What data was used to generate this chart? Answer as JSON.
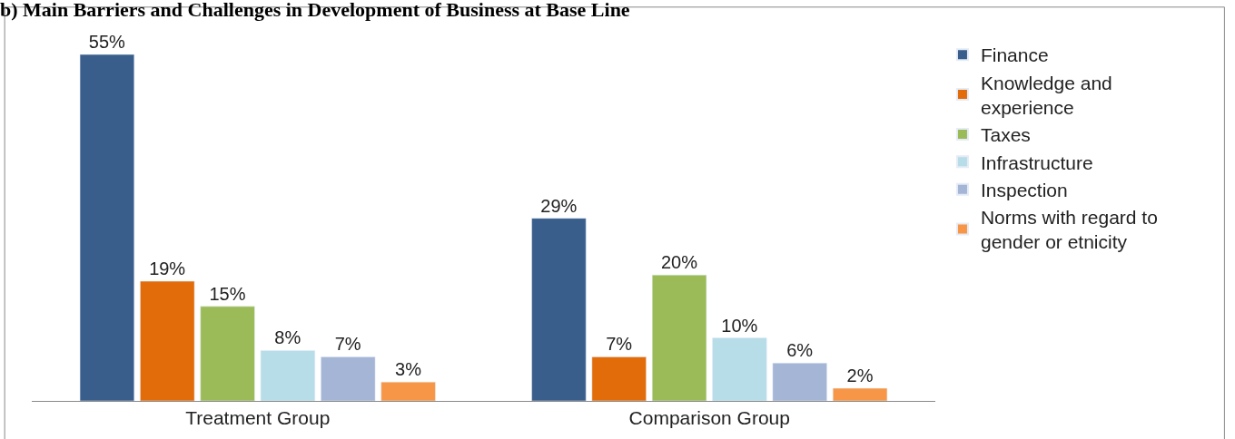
{
  "chart_data": {
    "type": "bar",
    "title": "b) Main Barriers and Challenges in Development of Business at Base Line",
    "categories": [
      "Treatment Group",
      "Comparison Group"
    ],
    "series": [
      {
        "name": "Finance",
        "color": "#3a5e8c",
        "values": [
          55,
          29
        ],
        "value_labels": [
          "55%",
          "29%"
        ]
      },
      {
        "name": "Knowledge and experience",
        "color": "#e36c0a",
        "values": [
          19,
          7
        ],
        "value_labels": [
          "19%",
          "7%"
        ]
      },
      {
        "name": "Taxes",
        "color": "#9bbb59",
        "values": [
          15,
          20
        ],
        "value_labels": [
          "15%",
          "20%"
        ]
      },
      {
        "name": "Infrastructure",
        "color": "#b7dde8",
        "values": [
          8,
          10
        ],
        "value_labels": [
          "8%",
          "10%"
        ]
      },
      {
        "name": "Inspection",
        "color": "#a5b5d6",
        "values": [
          7,
          6
        ],
        "value_labels": [
          "7%",
          "6%"
        ]
      },
      {
        "name": "Norms with regard to gender or etnicity",
        "color": "#f79646",
        "values": [
          3,
          2
        ],
        "value_labels": [
          "3%",
          "2%"
        ]
      }
    ],
    "legend": "right"
  }
}
